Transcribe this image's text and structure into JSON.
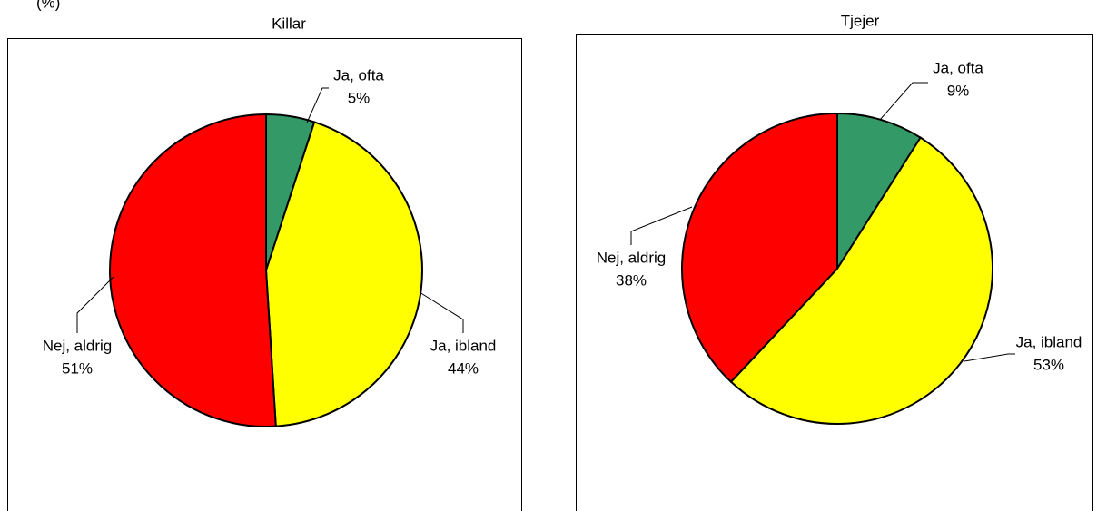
{
  "caption": "(%)",
  "chart_data": [
    {
      "type": "pie",
      "title": "Killar",
      "categories": [
        "Ja, ofta",
        "Ja, ibland",
        "Nej, aldrig"
      ],
      "values": [
        5,
        44,
        51
      ],
      "value_labels": [
        "5%",
        "44%",
        "51%"
      ],
      "colors": [
        "#339966",
        "#ffff00",
        "#ff0000"
      ]
    },
    {
      "type": "pie",
      "title": "Tjejer",
      "categories": [
        "Ja, ofta",
        "Ja, ibland",
        "Nej, aldrig"
      ],
      "values": [
        9,
        53,
        38
      ],
      "value_labels": [
        "9%",
        "53%",
        "38%"
      ],
      "colors": [
        "#339966",
        "#ffff00",
        "#ff0000"
      ]
    }
  ]
}
